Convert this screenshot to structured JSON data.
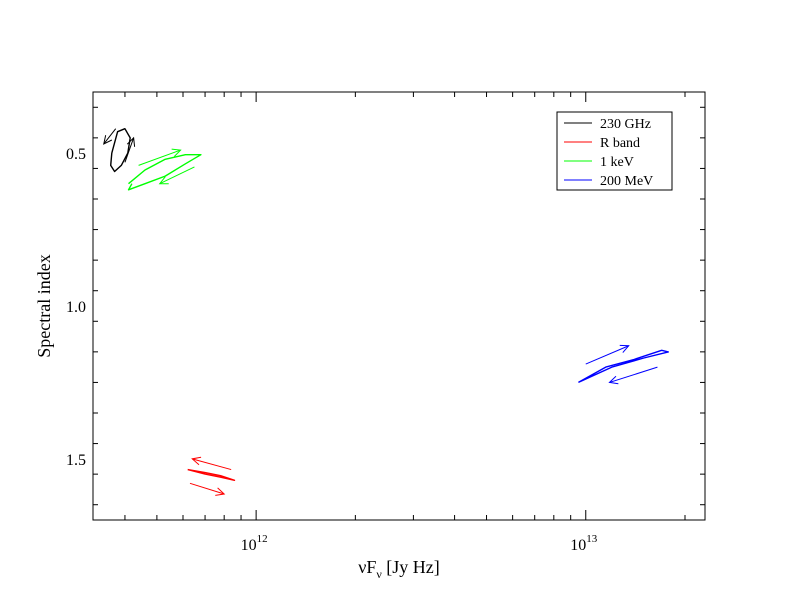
{
  "chart_data": {
    "type": "line",
    "xlabel": "νF",
    "xlabel_subscript": "ν",
    "xlabel_unit": " [Jy Hz]",
    "ylabel": "Spectral index",
    "x_scale": "log",
    "xlim": [
      320000000000.0,
      23000000000000.0
    ],
    "ylim": [
      1.7,
      0.3
    ],
    "y_axis_inverted": true,
    "x_tick_labels": [
      {
        "value": 1000000000000.0,
        "base": "10",
        "exp": "12"
      },
      {
        "value": 10000000000000.0,
        "base": "10",
        "exp": "13"
      }
    ],
    "y_ticks": [
      0.5,
      1.0,
      1.5
    ],
    "y_tick_labels": [
      "0.5",
      "1.0",
      "1.5"
    ],
    "grid": false,
    "legend_position": "top-right",
    "series": [
      {
        "name": "230 GHz",
        "color": "#000000",
        "x": [
          365000000000.0,
          380000000000.0,
          400000000000.0,
          415000000000.0,
          408000000000.0,
          390000000000.0,
          372000000000.0,
          362000000000.0,
          365000000000.0
        ],
        "y": [
          0.5,
          0.43,
          0.42,
          0.45,
          0.5,
          0.54,
          0.56,
          0.54,
          0.5
        ]
      },
      {
        "name": "R band",
        "color": "#ff0000",
        "x": [
          620000000000.0,
          700000000000.0,
          780000000000.0,
          860000000000.0,
          780000000000.0,
          700000000000.0,
          620000000000.0
        ],
        "y": [
          1.535,
          1.55,
          1.56,
          1.57,
          1.555,
          1.545,
          1.535
        ]
      },
      {
        "name": "1 keV",
        "color": "#00ff00",
        "x": [
          410000000000.0,
          460000000000.0,
          530000000000.0,
          610000000000.0,
          680000000000.0,
          610000000000.0,
          530000000000.0,
          460000000000.0,
          410000000000.0,
          420000000000.0
        ],
        "y": [
          0.6,
          0.555,
          0.52,
          0.505,
          0.505,
          0.535,
          0.575,
          0.6,
          0.62,
          0.6
        ]
      },
      {
        "name": "200 MeV",
        "color": "#0000ff",
        "x": [
          9500000000000.0,
          11500000000000.0,
          14000000000000.0,
          17000000000000.0,
          17800000000000.0,
          15000000000000.0,
          12000000000000.0,
          9500000000000.0
        ],
        "y": [
          1.25,
          1.2,
          1.175,
          1.145,
          1.15,
          1.17,
          1.2,
          1.25
        ]
      }
    ],
    "annotations": [
      {
        "type": "arrow",
        "color": "#000000",
        "x": [
          375000000000.0,
          345000000000.0
        ],
        "y": [
          0.42,
          0.47
        ]
      },
      {
        "type": "arrow",
        "color": "#000000",
        "x": [
          400000000000.0,
          425000000000.0
        ],
        "y": [
          0.53,
          0.45
        ]
      },
      {
        "type": "arrow",
        "color": "#00ff00",
        "x": [
          440000000000.0,
          590000000000.0
        ],
        "y": [
          0.54,
          0.49
        ]
      },
      {
        "type": "arrow",
        "color": "#00ff00",
        "x": [
          650000000000.0,
          510000000000.0
        ],
        "y": [
          0.545,
          0.6
        ]
      },
      {
        "type": "arrow",
        "color": "#ff0000",
        "x": [
          840000000000.0,
          640000000000.0
        ],
        "y": [
          1.535,
          1.5
        ]
      },
      {
        "type": "arrow",
        "color": "#ff0000",
        "x": [
          630000000000.0,
          800000000000.0
        ],
        "y": [
          1.58,
          1.615
        ]
      },
      {
        "type": "arrow",
        "color": "#0000ff",
        "x": [
          10000000000000.0,
          13500000000000.0
        ],
        "y": [
          1.19,
          1.13
        ]
      },
      {
        "type": "arrow",
        "color": "#0000ff",
        "x": [
          16500000000000.0,
          11800000000000.0
        ],
        "y": [
          1.2,
          1.25
        ]
      }
    ]
  }
}
